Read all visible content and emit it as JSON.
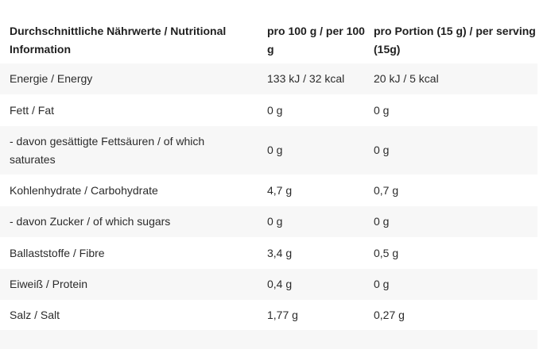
{
  "table": {
    "headers": [
      "Durchschnittliche Nährwerte / Nutritional Information",
      "pro 100 g / per 100 g",
      "pro Portion (15 g) / per serving (15g)"
    ],
    "rows": [
      [
        "Energie / Energy",
        "133 kJ / 32 kcal",
        "20 kJ / 5 kcal"
      ],
      [
        "Fett / Fat",
        "0 g",
        "0 g"
      ],
      [
        "- davon gesättigte Fettsäuren / of which saturates",
        "0 g",
        "0 g"
      ],
      [
        "Kohlenhydrate / Carbohydrate",
        "4,7 g",
        "0,7 g"
      ],
      [
        "- davon Zucker / of which sugars",
        "0 g",
        "0 g"
      ],
      [
        "Ballaststoffe / Fibre",
        "3,4 g",
        "0,5 g"
      ],
      [
        "Eiweiß / Protein",
        "0,4 g",
        "0 g"
      ],
      [
        "Salz / Salt",
        "1,77 g",
        "0,27 g"
      ]
    ]
  }
}
